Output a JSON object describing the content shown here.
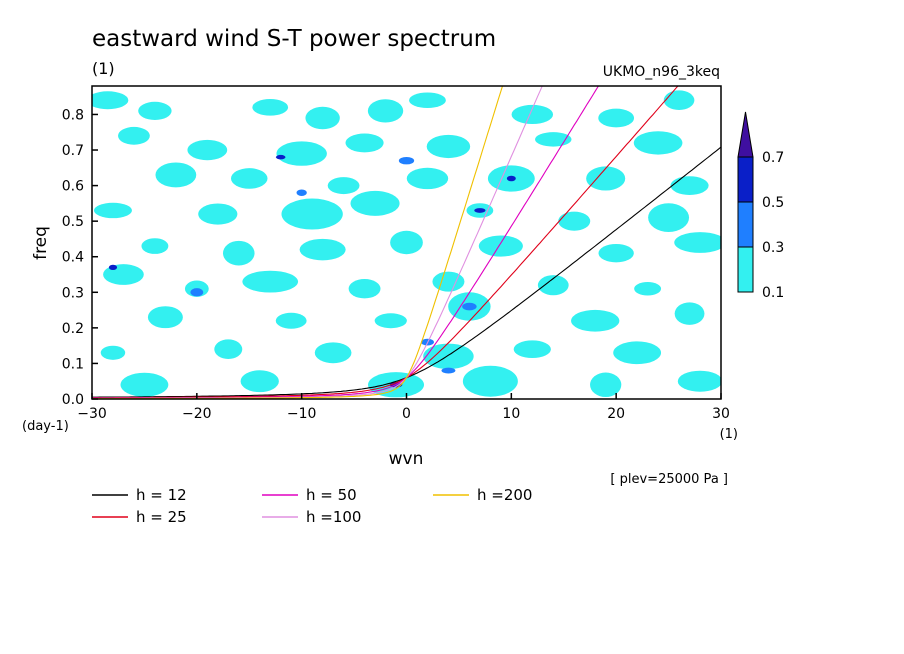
{
  "chart_data": {
    "type": "contour",
    "title": "eastward wind S-T power spectrum",
    "subtitle_left": "(1)",
    "subtitle_right": "UKMO_n96_3keq",
    "xlabel": "wvn",
    "ylabel": "freq",
    "x_unit_label": "(1)",
    "y_unit_label": "(day-1)",
    "xlim": [
      -30,
      30
    ],
    "ylim": [
      0,
      0.88
    ],
    "x_ticks": [
      -30,
      -20,
      -10,
      0,
      10,
      20,
      30
    ],
    "x_tick_labels": [
      "−30",
      "−20",
      "−10",
      "0",
      "10",
      "20",
      "30"
    ],
    "y_ticks": [
      0,
      0.1,
      0.2,
      0.3,
      0.4,
      0.5,
      0.6,
      0.7,
      0.8
    ],
    "y_tick_labels": [
      "0.0",
      "0.1",
      "0.2",
      "0.3",
      "0.4",
      "0.5",
      "0.6",
      "0.7",
      "0.8"
    ],
    "annotation": "[ plev=25000 Pa ]",
    "colorbar": {
      "levels": [
        0.1,
        0.3,
        0.5,
        0.7
      ],
      "labels": [
        "0.1",
        "0.3",
        "0.5",
        "0.7"
      ],
      "colors": [
        "#33f0f0",
        "#1f7fff",
        "#0a1fc8",
        "#3f0fa0"
      ]
    },
    "contour_blobs": [
      {
        "x": -28.5,
        "y": 0.84,
        "level": 0
      },
      {
        "x": -24,
        "y": 0.81,
        "level": 0
      },
      {
        "x": -13,
        "y": 0.82,
        "level": 0
      },
      {
        "x": -8,
        "y": 0.79,
        "level": 0
      },
      {
        "x": -2,
        "y": 0.81,
        "level": 0
      },
      {
        "x": 2,
        "y": 0.84,
        "level": 0
      },
      {
        "x": 12,
        "y": 0.8,
        "level": 0
      },
      {
        "x": 20,
        "y": 0.79,
        "level": 0
      },
      {
        "x": 26,
        "y": 0.84,
        "level": 0
      },
      {
        "x": -26,
        "y": 0.74,
        "level": 0
      },
      {
        "x": -19,
        "y": 0.7,
        "level": 0
      },
      {
        "x": -10,
        "y": 0.69,
        "level": 0
      },
      {
        "x": -4,
        "y": 0.72,
        "level": 0
      },
      {
        "x": 4,
        "y": 0.71,
        "level": 0
      },
      {
        "x": 14,
        "y": 0.73,
        "level": 0
      },
      {
        "x": 24,
        "y": 0.72,
        "level": 0
      },
      {
        "x": -22,
        "y": 0.63,
        "level": 0
      },
      {
        "x": -15,
        "y": 0.62,
        "level": 0
      },
      {
        "x": -6,
        "y": 0.6,
        "level": 0
      },
      {
        "x": 2,
        "y": 0.62,
        "level": 0
      },
      {
        "x": 10,
        "y": 0.62,
        "level": 0
      },
      {
        "x": 19,
        "y": 0.62,
        "level": 0
      },
      {
        "x": 27,
        "y": 0.6,
        "level": 0
      },
      {
        "x": -28,
        "y": 0.53,
        "level": 0
      },
      {
        "x": -18,
        "y": 0.52,
        "level": 0
      },
      {
        "x": -9,
        "y": 0.52,
        "level": 0
      },
      {
        "x": -3,
        "y": 0.55,
        "level": 0
      },
      {
        "x": 7,
        "y": 0.53,
        "level": 0
      },
      {
        "x": 16,
        "y": 0.5,
        "level": 0
      },
      {
        "x": 25,
        "y": 0.51,
        "level": 0
      },
      {
        "x": -24,
        "y": 0.43,
        "level": 0
      },
      {
        "x": -16,
        "y": 0.41,
        "level": 0
      },
      {
        "x": -8,
        "y": 0.42,
        "level": 0
      },
      {
        "x": 0,
        "y": 0.44,
        "level": 0
      },
      {
        "x": 9,
        "y": 0.43,
        "level": 0
      },
      {
        "x": 20,
        "y": 0.41,
        "level": 0
      },
      {
        "x": 28,
        "y": 0.44,
        "level": 0
      },
      {
        "x": -27,
        "y": 0.35,
        "level": 0
      },
      {
        "x": -20,
        "y": 0.31,
        "level": 0
      },
      {
        "x": -13,
        "y": 0.33,
        "level": 0
      },
      {
        "x": -4,
        "y": 0.31,
        "level": 0
      },
      {
        "x": 4,
        "y": 0.33,
        "level": 0
      },
      {
        "x": 14,
        "y": 0.32,
        "level": 0
      },
      {
        "x": 23,
        "y": 0.31,
        "level": 0
      },
      {
        "x": -23,
        "y": 0.23,
        "level": 0
      },
      {
        "x": -11,
        "y": 0.22,
        "level": 0
      },
      {
        "x": -1.5,
        "y": 0.22,
        "level": 0
      },
      {
        "x": 6,
        "y": 0.26,
        "level": 0
      },
      {
        "x": 18,
        "y": 0.22,
        "level": 0
      },
      {
        "x": 27,
        "y": 0.24,
        "level": 0
      },
      {
        "x": -28,
        "y": 0.13,
        "level": 0
      },
      {
        "x": -17,
        "y": 0.14,
        "level": 0
      },
      {
        "x": -7,
        "y": 0.13,
        "level": 0
      },
      {
        "x": 4,
        "y": 0.12,
        "level": 0
      },
      {
        "x": 12,
        "y": 0.14,
        "level": 0
      },
      {
        "x": 22,
        "y": 0.13,
        "level": 0
      },
      {
        "x": -25,
        "y": 0.04,
        "level": 0
      },
      {
        "x": -14,
        "y": 0.05,
        "level": 0
      },
      {
        "x": -1,
        "y": 0.04,
        "level": 0
      },
      {
        "x": 8,
        "y": 0.05,
        "level": 0
      },
      {
        "x": 19,
        "y": 0.04,
        "level": 0
      },
      {
        "x": 28,
        "y": 0.05,
        "level": 0
      },
      {
        "x": 7,
        "y": 0.53,
        "level": 2
      },
      {
        "x": 10,
        "y": 0.62,
        "level": 2
      },
      {
        "x": -12,
        "y": 0.68,
        "level": 2
      },
      {
        "x": -1,
        "y": 0.04,
        "level": 2
      },
      {
        "x": -28,
        "y": 0.37,
        "level": 2
      },
      {
        "x": 6,
        "y": 0.26,
        "level": 1
      },
      {
        "x": 2,
        "y": 0.16,
        "level": 1
      },
      {
        "x": 0,
        "y": 0.67,
        "level": 1
      },
      {
        "x": -10,
        "y": 0.58,
        "level": 1
      },
      {
        "x": -20,
        "y": 0.3,
        "level": 1
      },
      {
        "x": 4,
        "y": 0.08,
        "level": 1
      }
    ],
    "series": [
      {
        "name": "h = 12",
        "h": 12,
        "color": "#000000"
      },
      {
        "name": "h = 25",
        "h": 25,
        "color": "#e0001a"
      },
      {
        "name": "h = 50",
        "h": 50,
        "color": "#e000c0"
      },
      {
        "name": "h =100",
        "h": 100,
        "color": "#e090e0"
      },
      {
        "name": "h =200",
        "h": 200,
        "color": "#f0c000"
      }
    ]
  }
}
